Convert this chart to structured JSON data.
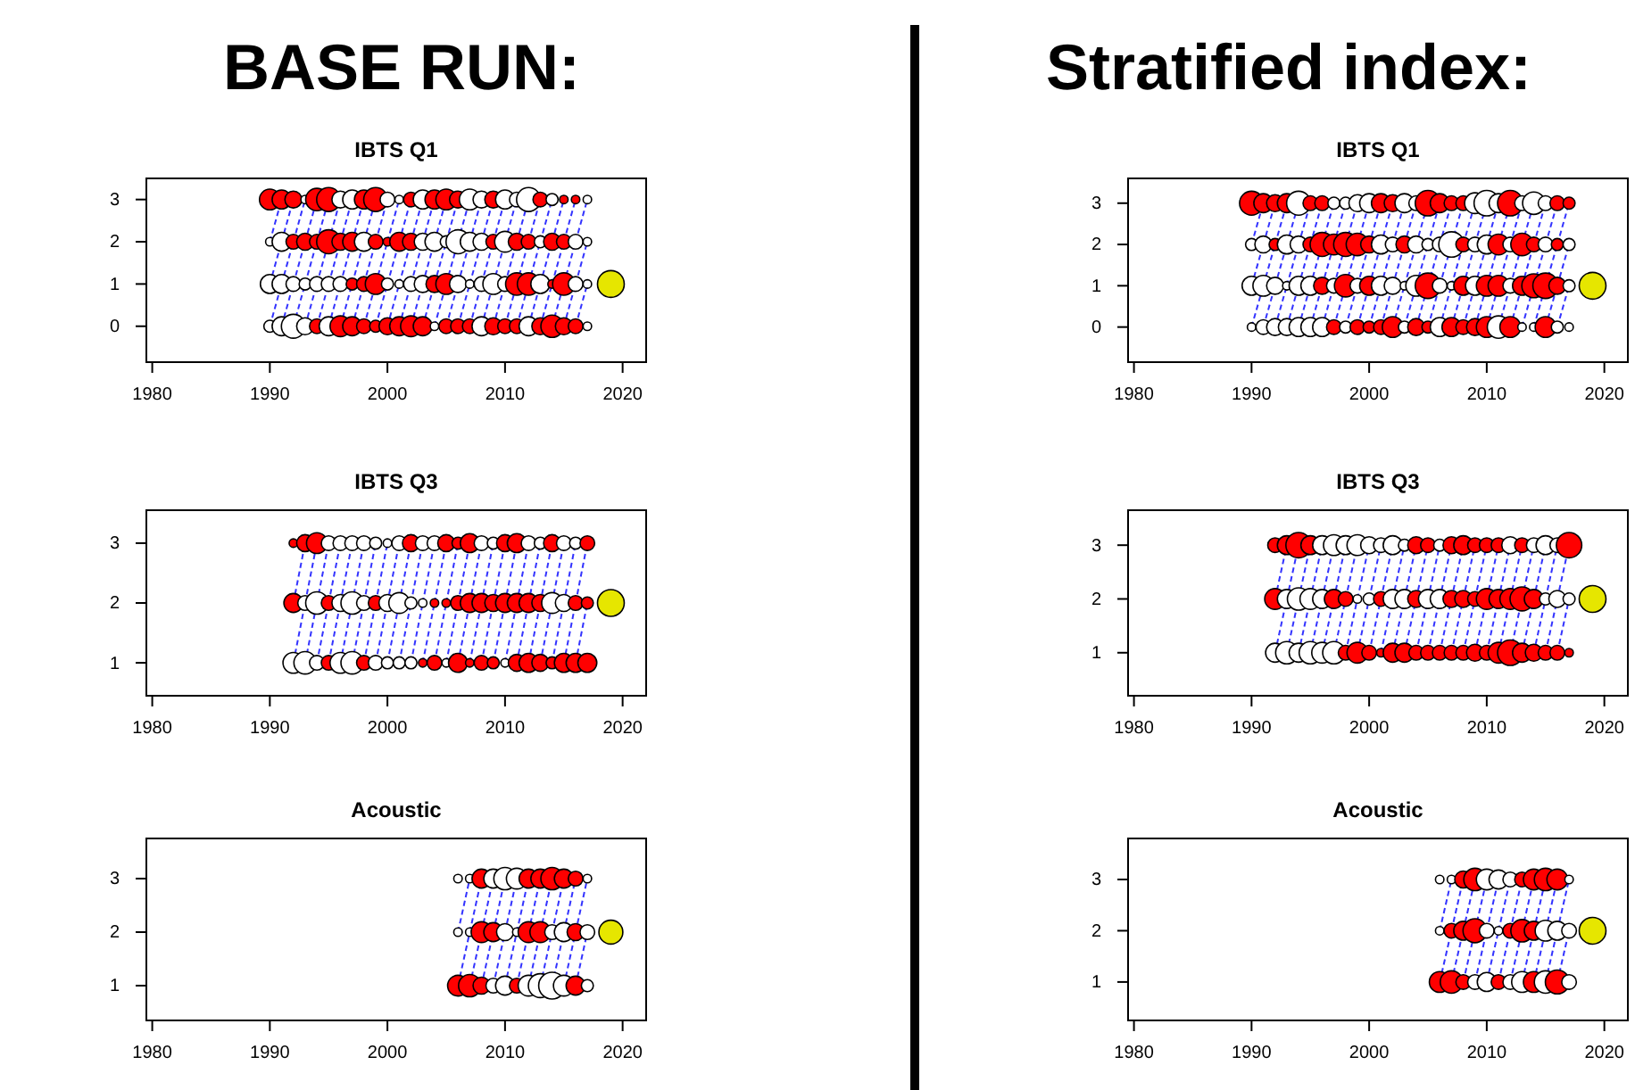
{
  "chart_data": [
    {
      "type": "other",
      "title": "BASE RUN:"
    },
    {
      "type": "bubble",
      "title": "IBTS Q1",
      "xlim": [
        1979.5,
        2022
      ],
      "xticks": [
        1980,
        1990,
        2000,
        2010,
        2020
      ],
      "ylim": [
        -0.85,
        3.5
      ],
      "yticks": [
        0,
        1,
        2,
        3
      ],
      "series": [
        {
          "x": [
            1990,
            1991,
            1992,
            1993,
            1994,
            1995,
            1996,
            1997,
            1998,
            1999,
            2000,
            2001,
            2002,
            2003,
            2004,
            2005,
            2006,
            2007,
            2008,
            2009,
            2010,
            2011,
            2012,
            2013,
            2014,
            2015,
            2016,
            2017
          ],
          "values": [
            3,
            3,
            3,
            3,
            3,
            3,
            3,
            3,
            3,
            3,
            3,
            3,
            3,
            3,
            3,
            3,
            3,
            3,
            3,
            3,
            3,
            3,
            3,
            3,
            3,
            3,
            3,
            3
          ],
          "sizes": [
            0.6,
            0.5,
            0.4,
            0.1,
            0.7,
            0.8,
            0.4,
            0.5,
            0.5,
            0.8,
            0.3,
            0.1,
            0.3,
            0.5,
            0.5,
            0.6,
            0.4,
            0.6,
            0.4,
            0.4,
            0.5,
            0.3,
            0.8,
            0.3,
            0.2,
            0.1,
            0.1,
            0.1
          ],
          "colors": [
            "#ff0000",
            "#ff0000",
            "#ff0000",
            "#ffffff",
            "#ff0000",
            "#ff0000",
            "#ffffff",
            "#ffffff",
            "#ff0000",
            "#ff0000",
            "#ffffff",
            "#ffffff",
            "#ff0000",
            "#ffffff",
            "#ff0000",
            "#ff0000",
            "#ff0000",
            "#ffffff",
            "#ffffff",
            "#ff0000",
            "#ffffff",
            "#ffffff",
            "#ffffff",
            "#ff0000",
            "#ffffff",
            "#ff0000",
            "#ff0000",
            "#ffffff"
          ]
        },
        {
          "x": [
            1990,
            1991,
            1992,
            1993,
            1994,
            1995,
            1996,
            1997,
            1998,
            1999,
            2000,
            2001,
            2002,
            2003,
            2004,
            2005,
            2006,
            2007,
            2008,
            2009,
            2010,
            2011,
            2012,
            2013,
            2014,
            2015,
            2016,
            2017
          ],
          "values": [
            2,
            2,
            2,
            2,
            2,
            2,
            2,
            2,
            2,
            2,
            2,
            2,
            2,
            2,
            2,
            2,
            2,
            2,
            2,
            2,
            2,
            2,
            2,
            2,
            2,
            2,
            2,
            2
          ],
          "sizes": [
            0.1,
            0.5,
            0.3,
            0.4,
            0.3,
            0.8,
            0.4,
            0.5,
            0.5,
            0.3,
            0.1,
            0.5,
            0.4,
            0.4,
            0.5,
            0.2,
            0.8,
            0.5,
            0.4,
            0.3,
            0.6,
            0.4,
            0.3,
            0.2,
            0.4,
            0.3,
            0.3,
            0.1
          ],
          "colors": [
            "#ffffff",
            "#ffffff",
            "#ff0000",
            "#ff0000",
            "#ff0000",
            "#ff0000",
            "#ff0000",
            "#ff0000",
            "#ffffff",
            "#ff0000",
            "#ff0000",
            "#ff0000",
            "#ff0000",
            "#ffffff",
            "#ffffff",
            "#ffffff",
            "#ffffff",
            "#ffffff",
            "#ffffff",
            "#ff0000",
            "#ffffff",
            "#ff0000",
            "#ff0000",
            "#ffffff",
            "#ff0000",
            "#ff0000",
            "#ffffff",
            "#ffffff"
          ]
        },
        {
          "x": [
            1990,
            1991,
            1992,
            1993,
            1994,
            1995,
            1996,
            1997,
            1998,
            1999,
            2000,
            2001,
            2002,
            2003,
            2004,
            2005,
            2006,
            2007,
            2008,
            2009,
            2010,
            2011,
            2012,
            2013,
            2014,
            2015,
            2016,
            2017
          ],
          "values": [
            1,
            1,
            1,
            1,
            1,
            1,
            1,
            1,
            1,
            1,
            1,
            1,
            1,
            1,
            1,
            1,
            1,
            1,
            1,
            1,
            1,
            1,
            1,
            1,
            1,
            1,
            1,
            1
          ],
          "sizes": [
            0.5,
            0.5,
            0.3,
            0.2,
            0.3,
            0.3,
            0.3,
            0.2,
            0.3,
            0.6,
            0.2,
            0.1,
            0.3,
            0.4,
            0.4,
            0.6,
            0.4,
            0.1,
            0.3,
            0.6,
            0.3,
            0.7,
            0.7,
            0.5,
            0.1,
            0.7,
            0.3,
            0.1
          ],
          "colors": [
            "#ffffff",
            "#ffffff",
            "#ffffff",
            "#ffffff",
            "#ffffff",
            "#ffffff",
            "#ffffff",
            "#ff0000",
            "#ff0000",
            "#ff0000",
            "#ffffff",
            "#ffffff",
            "#ffffff",
            "#ffffff",
            "#ff0000",
            "#ff0000",
            "#ffffff",
            "#ffffff",
            "#ffffff",
            "#ffffff",
            "#ffffff",
            "#ff0000",
            "#ff0000",
            "#ffffff",
            "#ff0000",
            "#ff0000",
            "#ffffff",
            "#ffffff"
          ]
        },
        {
          "x": [
            1990,
            1991,
            1992,
            1993,
            1994,
            1995,
            1996,
            1997,
            1998,
            1999,
            2000,
            2001,
            2002,
            2003,
            2004,
            2005,
            2006,
            2007,
            2008,
            2009,
            2010,
            2011,
            2012,
            2013,
            2014,
            2015,
            2016,
            2017
          ],
          "values": [
            0,
            0,
            0,
            0,
            0,
            0,
            0,
            0,
            0,
            0,
            0,
            0,
            0,
            0,
            0,
            0,
            0,
            0,
            0,
            0,
            0,
            0,
            0,
            0,
            0,
            0,
            0,
            0
          ],
          "sizes": [
            0.2,
            0.5,
            0.8,
            0.4,
            0.3,
            0.5,
            0.6,
            0.5,
            0.3,
            0.2,
            0.4,
            0.5,
            0.6,
            0.5,
            0.1,
            0.3,
            0.3,
            0.3,
            0.5,
            0.4,
            0.3,
            0.3,
            0.5,
            0.4,
            0.7,
            0.4,
            0.3,
            0.1
          ],
          "colors": [
            "#ffffff",
            "#ffffff",
            "#ffffff",
            "#ffffff",
            "#ff0000",
            "#ffffff",
            "#ff0000",
            "#ff0000",
            "#ff0000",
            "#ff0000",
            "#ff0000",
            "#ff0000",
            "#ff0000",
            "#ff0000",
            "#ffffff",
            "#ff0000",
            "#ff0000",
            "#ff0000",
            "#ffffff",
            "#ff0000",
            "#ff0000",
            "#ff0000",
            "#ffffff",
            "#ff0000",
            "#ff0000",
            "#ff0000",
            "#ff0000",
            "#ffffff"
          ]
        },
        {
          "x": [
            2019
          ],
          "values": [
            1
          ],
          "sizes": [
            1
          ],
          "color": "#e6e600"
        }
      ]
    },
    {
      "type": "bubble",
      "title": "IBTS Q3",
      "xlim": [
        1979.5,
        2022
      ],
      "xticks": [
        1980,
        1990,
        2000,
        2010,
        2020
      ],
      "ylim": [
        0.45,
        3.55
      ],
      "yticks": [
        1,
        2,
        3
      ],
      "series": [
        {
          "x": [
            1992,
            1993,
            1994,
            1995,
            1996,
            1997,
            1998,
            1999,
            2000,
            2001,
            2002,
            2003,
            2004,
            2005,
            2006,
            2007,
            2008,
            2009,
            2010,
            2011,
            2012,
            2013,
            2014,
            2015,
            2016,
            2017
          ],
          "values": [
            3,
            3,
            3,
            3,
            3,
            3,
            3,
            3,
            3,
            3,
            3,
            3,
            3,
            3,
            3,
            3,
            3,
            3,
            3,
            3,
            3,
            3,
            3,
            3,
            3,
            3
          ],
          "sizes": [
            0.1,
            0.4,
            0.6,
            0.3,
            0.3,
            0.3,
            0.3,
            0.2,
            0.1,
            0.3,
            0.4,
            0.3,
            0.3,
            0.4,
            0.2,
            0.5,
            0.3,
            0.2,
            0.4,
            0.5,
            0.3,
            0.2,
            0.4,
            0.3,
            0.2,
            0.3
          ],
          "colors": [
            "#ff0000",
            "#ff0000",
            "#ff0000",
            "#ffffff",
            "#ffffff",
            "#ffffff",
            "#ffffff",
            "#ffffff",
            "#ffffff",
            "#ffffff",
            "#ff0000",
            "#ffffff",
            "#ffffff",
            "#ff0000",
            "#ff0000",
            "#ff0000",
            "#ffffff",
            "#ffffff",
            "#ff0000",
            "#ff0000",
            "#ffffff",
            "#ffffff",
            "#ff0000",
            "#ffffff",
            "#ffffff",
            "#ff0000"
          ]
        },
        {
          "x": [
            1992,
            1993,
            1994,
            1995,
            1996,
            1997,
            1998,
            1999,
            2000,
            2001,
            2002,
            2003,
            2004,
            2005,
            2006,
            2007,
            2008,
            2009,
            2010,
            2011,
            2012,
            2013,
            2014,
            2015,
            2016,
            2017
          ],
          "values": [
            2,
            2,
            2,
            2,
            2,
            2,
            2,
            2,
            2,
            2,
            2,
            2,
            2,
            2,
            2,
            2,
            2,
            2,
            2,
            2,
            2,
            2,
            2,
            2,
            2,
            2
          ],
          "sizes": [
            0.5,
            0.3,
            0.7,
            0.3,
            0.4,
            0.7,
            0.3,
            0.3,
            0.4,
            0.6,
            0.2,
            0.1,
            0.1,
            0.1,
            0.3,
            0.5,
            0.5,
            0.4,
            0.5,
            0.5,
            0.5,
            0.4,
            0.6,
            0.4,
            0.3,
            0.2
          ],
          "colors": [
            "#ff0000",
            "#ffffff",
            "#ffffff",
            "#ff0000",
            "#ffffff",
            "#ffffff",
            "#ffffff",
            "#ff0000",
            "#ffffff",
            "#ffffff",
            "#ffffff",
            "#ffffff",
            "#ff0000",
            "#ff0000",
            "#ff0000",
            "#ff0000",
            "#ff0000",
            "#ff0000",
            "#ff0000",
            "#ff0000",
            "#ff0000",
            "#ff0000",
            "#ffffff",
            "#ffffff",
            "#ff0000",
            "#ff0000"
          ]
        },
        {
          "x": [
            1992,
            1993,
            1994,
            1995,
            1996,
            1997,
            1998,
            1999,
            2000,
            2001,
            2002,
            2003,
            2004,
            2005,
            2006,
            2007,
            2008,
            2009,
            2010,
            2011,
            2012,
            2013,
            2014,
            2015,
            2016,
            2017
          ],
          "values": [
            1,
            1,
            1,
            1,
            1,
            1,
            1,
            1,
            1,
            1,
            1,
            1,
            1,
            1,
            1,
            1,
            1,
            1,
            1,
            1,
            1,
            1,
            1,
            1,
            1,
            1
          ],
          "sizes": [
            0.6,
            0.7,
            0.3,
            0.3,
            0.6,
            0.7,
            0.3,
            0.3,
            0.2,
            0.2,
            0.2,
            0.1,
            0.3,
            0.1,
            0.5,
            0.1,
            0.3,
            0.2,
            0.1,
            0.4,
            0.5,
            0.4,
            0.2,
            0.5,
            0.5,
            0.5
          ],
          "colors": [
            "#ffffff",
            "#ffffff",
            "#ffffff",
            "#ff0000",
            "#ffffff",
            "#ffffff",
            "#ff0000",
            "#ffffff",
            "#ffffff",
            "#ffffff",
            "#ffffff",
            "#ff0000",
            "#ff0000",
            "#ffffff",
            "#ff0000",
            "#ff0000",
            "#ff0000",
            "#ff0000",
            "#ffffff",
            "#ff0000",
            "#ff0000",
            "#ff0000",
            "#ff0000",
            "#ff0000",
            "#ff0000",
            "#ff0000"
          ]
        },
        {
          "x": [
            2019
          ],
          "values": [
            2
          ],
          "sizes": [
            1
          ],
          "color": "#e6e600"
        }
      ]
    },
    {
      "type": "bubble",
      "title": "Acoustic",
      "xlim": [
        1979.5,
        2022
      ],
      "xticks": [
        1980,
        1990,
        2000,
        2010,
        2020
      ],
      "ylim": [
        0.35,
        3.75
      ],
      "yticks": [
        1,
        2,
        3
      ],
      "series": [
        {
          "x": [
            2006,
            2007,
            2008,
            2009,
            2010,
            2011,
            2012,
            2013,
            2014,
            2015,
            2016,
            2017
          ],
          "values": [
            3,
            3,
            3,
            3,
            3,
            3,
            3,
            3,
            3,
            3,
            3,
            3
          ],
          "sizes": [
            0.1,
            0.1,
            0.5,
            0.5,
            0.7,
            0.6,
            0.5,
            0.5,
            0.7,
            0.5,
            0.3,
            0.1
          ],
          "colors": [
            "#ffffff",
            "#ffffff",
            "#ff0000",
            "#ffffff",
            "#ffffff",
            "#ffffff",
            "#ff0000",
            "#ff0000",
            "#ff0000",
            "#ff0000",
            "#ff0000",
            "#ffffff"
          ]
        },
        {
          "x": [
            2006,
            2007,
            2008,
            2009,
            2010,
            2011,
            2012,
            2013,
            2014,
            2015,
            2016,
            2017
          ],
          "values": [
            2,
            2,
            2,
            2,
            2,
            2,
            2,
            2,
            2,
            2,
            2,
            2
          ],
          "sizes": [
            0.1,
            0.1,
            0.6,
            0.5,
            0.4,
            0.1,
            0.6,
            0.6,
            0.3,
            0.5,
            0.4,
            0.3
          ],
          "colors": [
            "#ffffff",
            "#ffffff",
            "#ff0000",
            "#ff0000",
            "#ffffff",
            "#ffffff",
            "#ff0000",
            "#ff0000",
            "#ffffff",
            "#ffffff",
            "#ff0000",
            "#ffffff"
          ]
        },
        {
          "x": [
            2006,
            2007,
            2008,
            2009,
            2010,
            2011,
            2012,
            2013,
            2014,
            2015,
            2016,
            2017
          ],
          "values": [
            1,
            1,
            1,
            1,
            1,
            1,
            1,
            1,
            1,
            1,
            1,
            1
          ],
          "sizes": [
            0.6,
            0.7,
            0.4,
            0.3,
            0.5,
            0.3,
            0.6,
            0.8,
            1,
            0.6,
            0.5,
            0.2
          ],
          "colors": [
            "#ff0000",
            "#ff0000",
            "#ff0000",
            "#ffffff",
            "#ffffff",
            "#ff0000",
            "#ffffff",
            "#ffffff",
            "#ffffff",
            "#ffffff",
            "#ff0000",
            "#ffffff"
          ]
        },
        {
          "x": [
            2019
          ],
          "values": [
            2
          ],
          "sizes": [
            0.8
          ],
          "color": "#e6e600"
        }
      ]
    },
    {
      "type": "other",
      "title": "Stratified index:"
    },
    {
      "type": "bubble",
      "title": "IBTS Q1",
      "xlim": [
        1979.5,
        2022
      ],
      "xticks": [
        1980,
        1990,
        2000,
        2010,
        2020
      ],
      "ylim": [
        -0.85,
        3.6
      ],
      "yticks": [
        0,
        1,
        2,
        3
      ],
      "series": [
        {
          "x": [
            1990,
            1991,
            1992,
            1993,
            1994,
            1995,
            1996,
            1997,
            1998,
            1999,
            2000,
            2001,
            2002,
            2003,
            2004,
            2005,
            2006,
            2007,
            2008,
            2009,
            2010,
            2011,
            2012,
            2013,
            2014,
            2015,
            2016,
            2017
          ],
          "values": [
            3,
            3,
            3,
            3,
            3,
            3,
            3,
            3,
            3,
            3,
            3,
            3,
            3,
            3,
            3,
            3,
            3,
            3,
            3,
            3,
            3,
            3,
            3,
            3,
            3,
            3,
            3,
            3
          ],
          "sizes": [
            0.8,
            0.5,
            0.4,
            0.5,
            0.8,
            0.3,
            0.3,
            0.2,
            0.2,
            0.4,
            0.5,
            0.5,
            0.4,
            0.5,
            0.3,
            0.9,
            0.5,
            0.3,
            0.3,
            0.6,
            0.9,
            0.5,
            0.9,
            0.3,
            0.7,
            0.3,
            0.3,
            0.2
          ],
          "colors": [
            "#ff0000",
            "#ff0000",
            "#ff0000",
            "#ff0000",
            "#ffffff",
            "#ff0000",
            "#ff0000",
            "#ffffff",
            "#ffffff",
            "#ffffff",
            "#ffffff",
            "#ff0000",
            "#ff0000",
            "#ffffff",
            "#ffffff",
            "#ff0000",
            "#ff0000",
            "#ff0000",
            "#ff0000",
            "#ffffff",
            "#ffffff",
            "#ffffff",
            "#ff0000",
            "#ffffff",
            "#ffffff",
            "#ffffff",
            "#ff0000",
            "#ff0000"
          ]
        },
        {
          "x": [
            1990,
            1991,
            1992,
            1993,
            1994,
            1995,
            1996,
            1997,
            1998,
            1999,
            2000,
            2001,
            2002,
            2003,
            2004,
            2005,
            2006,
            2007,
            2008,
            2009,
            2010,
            2011,
            2012,
            2013,
            2014,
            2015,
            2016,
            2017
          ],
          "values": [
            2,
            2,
            2,
            2,
            2,
            2,
            2,
            2,
            2,
            2,
            2,
            2,
            2,
            2,
            2,
            2,
            2,
            2,
            2,
            2,
            2,
            2,
            2,
            2,
            2,
            2,
            2,
            2
          ],
          "sizes": [
            0.2,
            0.4,
            0.2,
            0.5,
            0.4,
            0.3,
            0.8,
            0.6,
            0.8,
            0.7,
            0.4,
            0.5,
            0.3,
            0.4,
            0.4,
            0.2,
            0.3,
            0.9,
            0.3,
            0.3,
            0.5,
            0.6,
            0.3,
            0.7,
            0.3,
            0.3,
            0.2,
            0.2
          ],
          "colors": [
            "#ffffff",
            "#ffffff",
            "#ff0000",
            "#ffffff",
            "#ffffff",
            "#ff0000",
            "#ff0000",
            "#ff0000",
            "#ff0000",
            "#ff0000",
            "#ff0000",
            "#ffffff",
            "#ffffff",
            "#ff0000",
            "#ffffff",
            "#ffffff",
            "#ffffff",
            "#ffffff",
            "#ff0000",
            "#ffffff",
            "#ffffff",
            "#ff0000",
            "#ffffff",
            "#ff0000",
            "#ff0000",
            "#ffffff",
            "#ff0000",
            "#ffffff"
          ]
        },
        {
          "x": [
            1990,
            1991,
            1992,
            1993,
            1994,
            1995,
            1996,
            1997,
            1998,
            1999,
            2000,
            2001,
            2002,
            2003,
            2004,
            2005,
            2006,
            2007,
            2008,
            2009,
            2010,
            2011,
            2012,
            2013,
            2014,
            2015,
            2016,
            2017
          ],
          "values": [
            1,
            1,
            1,
            1,
            1,
            1,
            1,
            1,
            1,
            1,
            1,
            1,
            1,
            1,
            1,
            1,
            1,
            1,
            1,
            1,
            1,
            1,
            1,
            1,
            1,
            1,
            1,
            1
          ],
          "sizes": [
            0.5,
            0.6,
            0.4,
            0.1,
            0.5,
            0.5,
            0.4,
            0.3,
            0.7,
            0.3,
            0.5,
            0.5,
            0.4,
            0.1,
            0.6,
            0.9,
            0.3,
            0.1,
            0.5,
            0.5,
            0.6,
            0.6,
            0.3,
            0.5,
            0.8,
            0.9,
            0.4,
            0.2
          ],
          "colors": [
            "#ffffff",
            "#ffffff",
            "#ffffff",
            "#ffffff",
            "#ffffff",
            "#ffffff",
            "#ff0000",
            "#ffffff",
            "#ff0000",
            "#ffffff",
            "#ff0000",
            "#ffffff",
            "#ffffff",
            "#ffffff",
            "#ffffff",
            "#ff0000",
            "#ffffff",
            "#ffffff",
            "#ff0000",
            "#ffffff",
            "#ff0000",
            "#ff0000",
            "#ffffff",
            "#ff0000",
            "#ff0000",
            "#ff0000",
            "#ff0000",
            "#ffffff"
          ]
        },
        {
          "x": [
            1990,
            1991,
            1992,
            1993,
            1994,
            1995,
            1996,
            1997,
            1998,
            1999,
            2000,
            2001,
            2002,
            2003,
            2004,
            2005,
            2006,
            2007,
            2008,
            2009,
            2010,
            2011,
            2012,
            2013,
            2014,
            2015,
            2016,
            2017
          ],
          "values": [
            0,
            0,
            0,
            0,
            0,
            0,
            0,
            0,
            0,
            0,
            0,
            0,
            0,
            0,
            0,
            0,
            0,
            0,
            0,
            0,
            0,
            0,
            0,
            0,
            0,
            0,
            0,
            0
          ],
          "sizes": [
            0.1,
            0.3,
            0.4,
            0.4,
            0.5,
            0.5,
            0.5,
            0.3,
            0.2,
            0.3,
            0.2,
            0.3,
            0.6,
            0.2,
            0.4,
            0.2,
            0.5,
            0.5,
            0.3,
            0.4,
            0.6,
            0.7,
            0.6,
            0.1,
            0.1,
            0.6,
            0.2,
            0.1
          ],
          "colors": [
            "#ffffff",
            "#ffffff",
            "#ffffff",
            "#ffffff",
            "#ffffff",
            "#ffffff",
            "#ffffff",
            "#ff0000",
            "#ffffff",
            "#ff0000",
            "#ff0000",
            "#ff0000",
            "#ff0000",
            "#ffffff",
            "#ff0000",
            "#ff0000",
            "#ffffff",
            "#ff0000",
            "#ff0000",
            "#ff0000",
            "#ff0000",
            "#ffffff",
            "#ff0000",
            "#ffffff",
            "#ffffff",
            "#ff0000",
            "#ffffff",
            "#ffffff"
          ]
        },
        {
          "x": [
            2019
          ],
          "values": [
            1
          ],
          "sizes": [
            1
          ],
          "color": "#e6e600"
        }
      ]
    },
    {
      "type": "bubble",
      "title": "IBTS Q3",
      "xlim": [
        1979.5,
        2022
      ],
      "xticks": [
        1980,
        1990,
        2000,
        2010,
        2020
      ],
      "ylim": [
        0.2,
        3.65
      ],
      "yticks": [
        1,
        2,
        3
      ],
      "series": [
        {
          "x": [
            1992,
            1993,
            1994,
            1995,
            1996,
            1997,
            1998,
            1999,
            2000,
            2001,
            2002,
            2003,
            2004,
            2005,
            2006,
            2007,
            2008,
            2009,
            2010,
            2011,
            2012,
            2013,
            2014,
            2015,
            2016,
            2017
          ],
          "values": [
            3,
            3,
            3,
            3,
            3,
            3,
            3,
            3,
            3,
            3,
            3,
            3,
            3,
            3,
            3,
            3,
            3,
            3,
            3,
            3,
            3,
            3,
            3,
            3,
            3,
            3
          ],
          "sizes": [
            0.3,
            0.5,
            0.9,
            0.5,
            0.5,
            0.6,
            0.5,
            0.6,
            0.4,
            0.3,
            0.5,
            0.2,
            0.4,
            0.3,
            0.2,
            0.4,
            0.5,
            0.3,
            0.3,
            0.3,
            0.4,
            0.3,
            0.3,
            0.5,
            0.3,
            0.9
          ],
          "colors": [
            "#ff0000",
            "#ff0000",
            "#ff0000",
            "#ff0000",
            "#ffffff",
            "#ffffff",
            "#ffffff",
            "#ffffff",
            "#ffffff",
            "#ffffff",
            "#ffffff",
            "#ffffff",
            "#ff0000",
            "#ff0000",
            "#ffffff",
            "#ff0000",
            "#ff0000",
            "#ff0000",
            "#ff0000",
            "#ff0000",
            "#ffffff",
            "#ff0000",
            "#ffffff",
            "#ffffff",
            "#ffffff",
            "#ff0000"
          ]
        },
        {
          "x": [
            1992,
            1993,
            1994,
            1995,
            1996,
            1997,
            1998,
            1999,
            2000,
            2001,
            2002,
            2003,
            2004,
            2005,
            2006,
            2007,
            2008,
            2009,
            2010,
            2011,
            2012,
            2013,
            2014,
            2015,
            2016,
            2017
          ],
          "values": [
            2,
            2,
            2,
            2,
            2,
            2,
            2,
            2,
            2,
            2,
            2,
            2,
            2,
            2,
            2,
            2,
            2,
            2,
            2,
            2,
            2,
            2,
            2,
            2,
            2,
            2
          ],
          "sizes": [
            0.6,
            0.5,
            0.7,
            0.6,
            0.5,
            0.5,
            0.3,
            0.1,
            0.2,
            0.3,
            0.5,
            0.5,
            0.4,
            0.5,
            0.5,
            0.4,
            0.4,
            0.3,
            0.6,
            0.5,
            0.6,
            0.8,
            0.5,
            0.2,
            0.4,
            0.2
          ],
          "colors": [
            "#ff0000",
            "#ffffff",
            "#ffffff",
            "#ffffff",
            "#ffffff",
            "#ff0000",
            "#ff0000",
            "#ffffff",
            "#ffffff",
            "#ff0000",
            "#ffffff",
            "#ffffff",
            "#ff0000",
            "#ffffff",
            "#ffffff",
            "#ff0000",
            "#ff0000",
            "#ff0000",
            "#ff0000",
            "#ff0000",
            "#ff0000",
            "#ff0000",
            "#ff0000",
            "#ffffff",
            "#ffffff",
            "#ffffff"
          ]
        },
        {
          "x": [
            1992,
            1993,
            1994,
            1995,
            1996,
            1997,
            1998,
            1999,
            2000,
            2001,
            2002,
            2003,
            2004,
            2005,
            2006,
            2007,
            2008,
            2009,
            2010,
            2011,
            2012,
            2013,
            2014,
            2015,
            2016,
            2017
          ],
          "values": [
            1,
            1,
            1,
            1,
            1,
            1,
            1,
            1,
            1,
            1,
            1,
            1,
            1,
            1,
            1,
            1,
            1,
            1,
            1,
            1,
            1,
            1,
            1,
            1,
            1,
            1
          ],
          "sizes": [
            0.5,
            0.7,
            0.5,
            0.7,
            0.6,
            0.7,
            0.3,
            0.6,
            0.3,
            0.1,
            0.5,
            0.5,
            0.3,
            0.3,
            0.3,
            0.3,
            0.3,
            0.4,
            0.3,
            0.6,
            0.9,
            0.5,
            0.4,
            0.3,
            0.3,
            0.1
          ],
          "colors": [
            "#ffffff",
            "#ffffff",
            "#ffffff",
            "#ffffff",
            "#ffffff",
            "#ffffff",
            "#ff0000",
            "#ff0000",
            "#ff0000",
            "#ff0000",
            "#ff0000",
            "#ff0000",
            "#ff0000",
            "#ff0000",
            "#ff0000",
            "#ff0000",
            "#ff0000",
            "#ff0000",
            "#ff0000",
            "#ff0000",
            "#ff0000",
            "#ff0000",
            "#ff0000",
            "#ff0000",
            "#ff0000",
            "#ff0000"
          ]
        },
        {
          "x": [
            2019
          ],
          "values": [
            2
          ],
          "sizes": [
            1
          ],
          "color": "#e6e600"
        }
      ]
    },
    {
      "type": "bubble",
      "title": "Acoustic",
      "xlim": [
        1979.5,
        2022
      ],
      "xticks": [
        1980,
        1990,
        2000,
        2010,
        2020
      ],
      "ylim": [
        0.25,
        3.8
      ],
      "yticks": [
        1,
        2,
        3
      ],
      "series": [
        {
          "x": [
            2006,
            2007,
            2008,
            2009,
            2010,
            2011,
            2012,
            2013,
            2014,
            2015,
            2016,
            2017
          ],
          "values": [
            3,
            3,
            3,
            3,
            3,
            3,
            3,
            3,
            3,
            3,
            3,
            3
          ],
          "sizes": [
            0.1,
            0.1,
            0.4,
            0.7,
            0.6,
            0.5,
            0.3,
            0.3,
            0.6,
            0.7,
            0.6,
            0.1
          ],
          "colors": [
            "#ffffff",
            "#ffffff",
            "#ff0000",
            "#ff0000",
            "#ffffff",
            "#ffffff",
            "#ffffff",
            "#ff0000",
            "#ff0000",
            "#ff0000",
            "#ff0000",
            "#ffffff"
          ]
        },
        {
          "x": [
            2006,
            2007,
            2008,
            2009,
            2010,
            2011,
            2012,
            2013,
            2014,
            2015,
            2016,
            2017
          ],
          "values": [
            2,
            2,
            2,
            2,
            2,
            2,
            2,
            2,
            2,
            2,
            2,
            2
          ],
          "sizes": [
            0.1,
            0.3,
            0.5,
            0.8,
            0.3,
            0.1,
            0.3,
            0.7,
            0.5,
            0.6,
            0.5,
            0.3
          ],
          "colors": [
            "#ffffff",
            "#ff0000",
            "#ff0000",
            "#ff0000",
            "#ffffff",
            "#ffffff",
            "#ff0000",
            "#ff0000",
            "#ff0000",
            "#ffffff",
            "#ffffff",
            "#ffffff"
          ]
        },
        {
          "x": [
            2006,
            2007,
            2008,
            2009,
            2010,
            2011,
            2012,
            2013,
            2014,
            2015,
            2016,
            2017
          ],
          "values": [
            1,
            1,
            1,
            1,
            1,
            1,
            1,
            1,
            1,
            1,
            1,
            1
          ],
          "sizes": [
            0.6,
            0.7,
            0.3,
            0.3,
            0.5,
            0.3,
            0.3,
            0.6,
            0.6,
            0.7,
            0.8,
            0.3
          ],
          "colors": [
            "#ff0000",
            "#ff0000",
            "#ff0000",
            "#ffffff",
            "#ffffff",
            "#ff0000",
            "#ffffff",
            "#ffffff",
            "#ff0000",
            "#ffffff",
            "#ff0000",
            "#ffffff"
          ]
        },
        {
          "x": [
            2019
          ],
          "values": [
            2
          ],
          "sizes": [
            1
          ],
          "color": "#e6e600"
        }
      ]
    }
  ]
}
